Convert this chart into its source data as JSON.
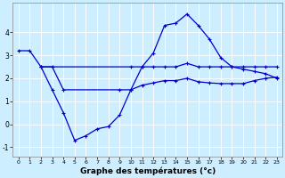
{
  "xlabel": "Graphe des températures (°c)",
  "background_color": "#cceeff",
  "grid_color": "#aaddcc",
  "line_color": "#0000cc",
  "xlim": [
    -0.5,
    23.5
  ],
  "ylim": [
    -1.4,
    5.3
  ],
  "yticks": [
    -1,
    0,
    1,
    2,
    3,
    4
  ],
  "xticks": [
    0,
    1,
    2,
    3,
    4,
    5,
    6,
    7,
    8,
    9,
    10,
    11,
    12,
    13,
    14,
    15,
    16,
    17,
    18,
    19,
    20,
    21,
    22,
    23
  ],
  "series1_x": [
    0,
    1,
    2,
    3,
    4,
    5,
    6,
    7,
    8,
    9,
    10,
    11,
    12,
    13,
    14,
    15,
    16,
    17,
    18,
    19,
    20,
    21,
    22,
    23
  ],
  "series1_y": [
    3.2,
    3.2,
    2.5,
    1.5,
    0.5,
    -0.7,
    -0.5,
    -0.2,
    -0.1,
    0.4,
    1.5,
    2.5,
    3.1,
    4.3,
    4.4,
    4.8,
    4.3,
    3.7,
    2.9,
    2.5,
    2.4,
    2.3,
    2.2,
    2.0
  ],
  "series2_x": [
    2,
    3,
    4,
    9,
    10,
    11,
    12,
    13,
    14,
    15,
    16,
    17,
    18,
    19,
    20,
    21,
    22,
    23
  ],
  "series2_y": [
    2.5,
    2.5,
    1.5,
    1.5,
    1.5,
    1.7,
    1.8,
    1.9,
    1.9,
    2.0,
    1.85,
    1.8,
    1.77,
    1.77,
    1.77,
    1.9,
    2.0,
    2.05
  ],
  "series3_x": [
    2,
    10,
    11,
    12,
    13,
    14,
    15,
    16,
    17,
    18,
    19,
    20,
    21,
    22,
    23
  ],
  "series3_y": [
    2.5,
    2.5,
    2.5,
    2.5,
    2.5,
    2.5,
    2.65,
    2.5,
    2.5,
    2.5,
    2.5,
    2.5,
    2.5,
    2.5,
    2.5
  ]
}
